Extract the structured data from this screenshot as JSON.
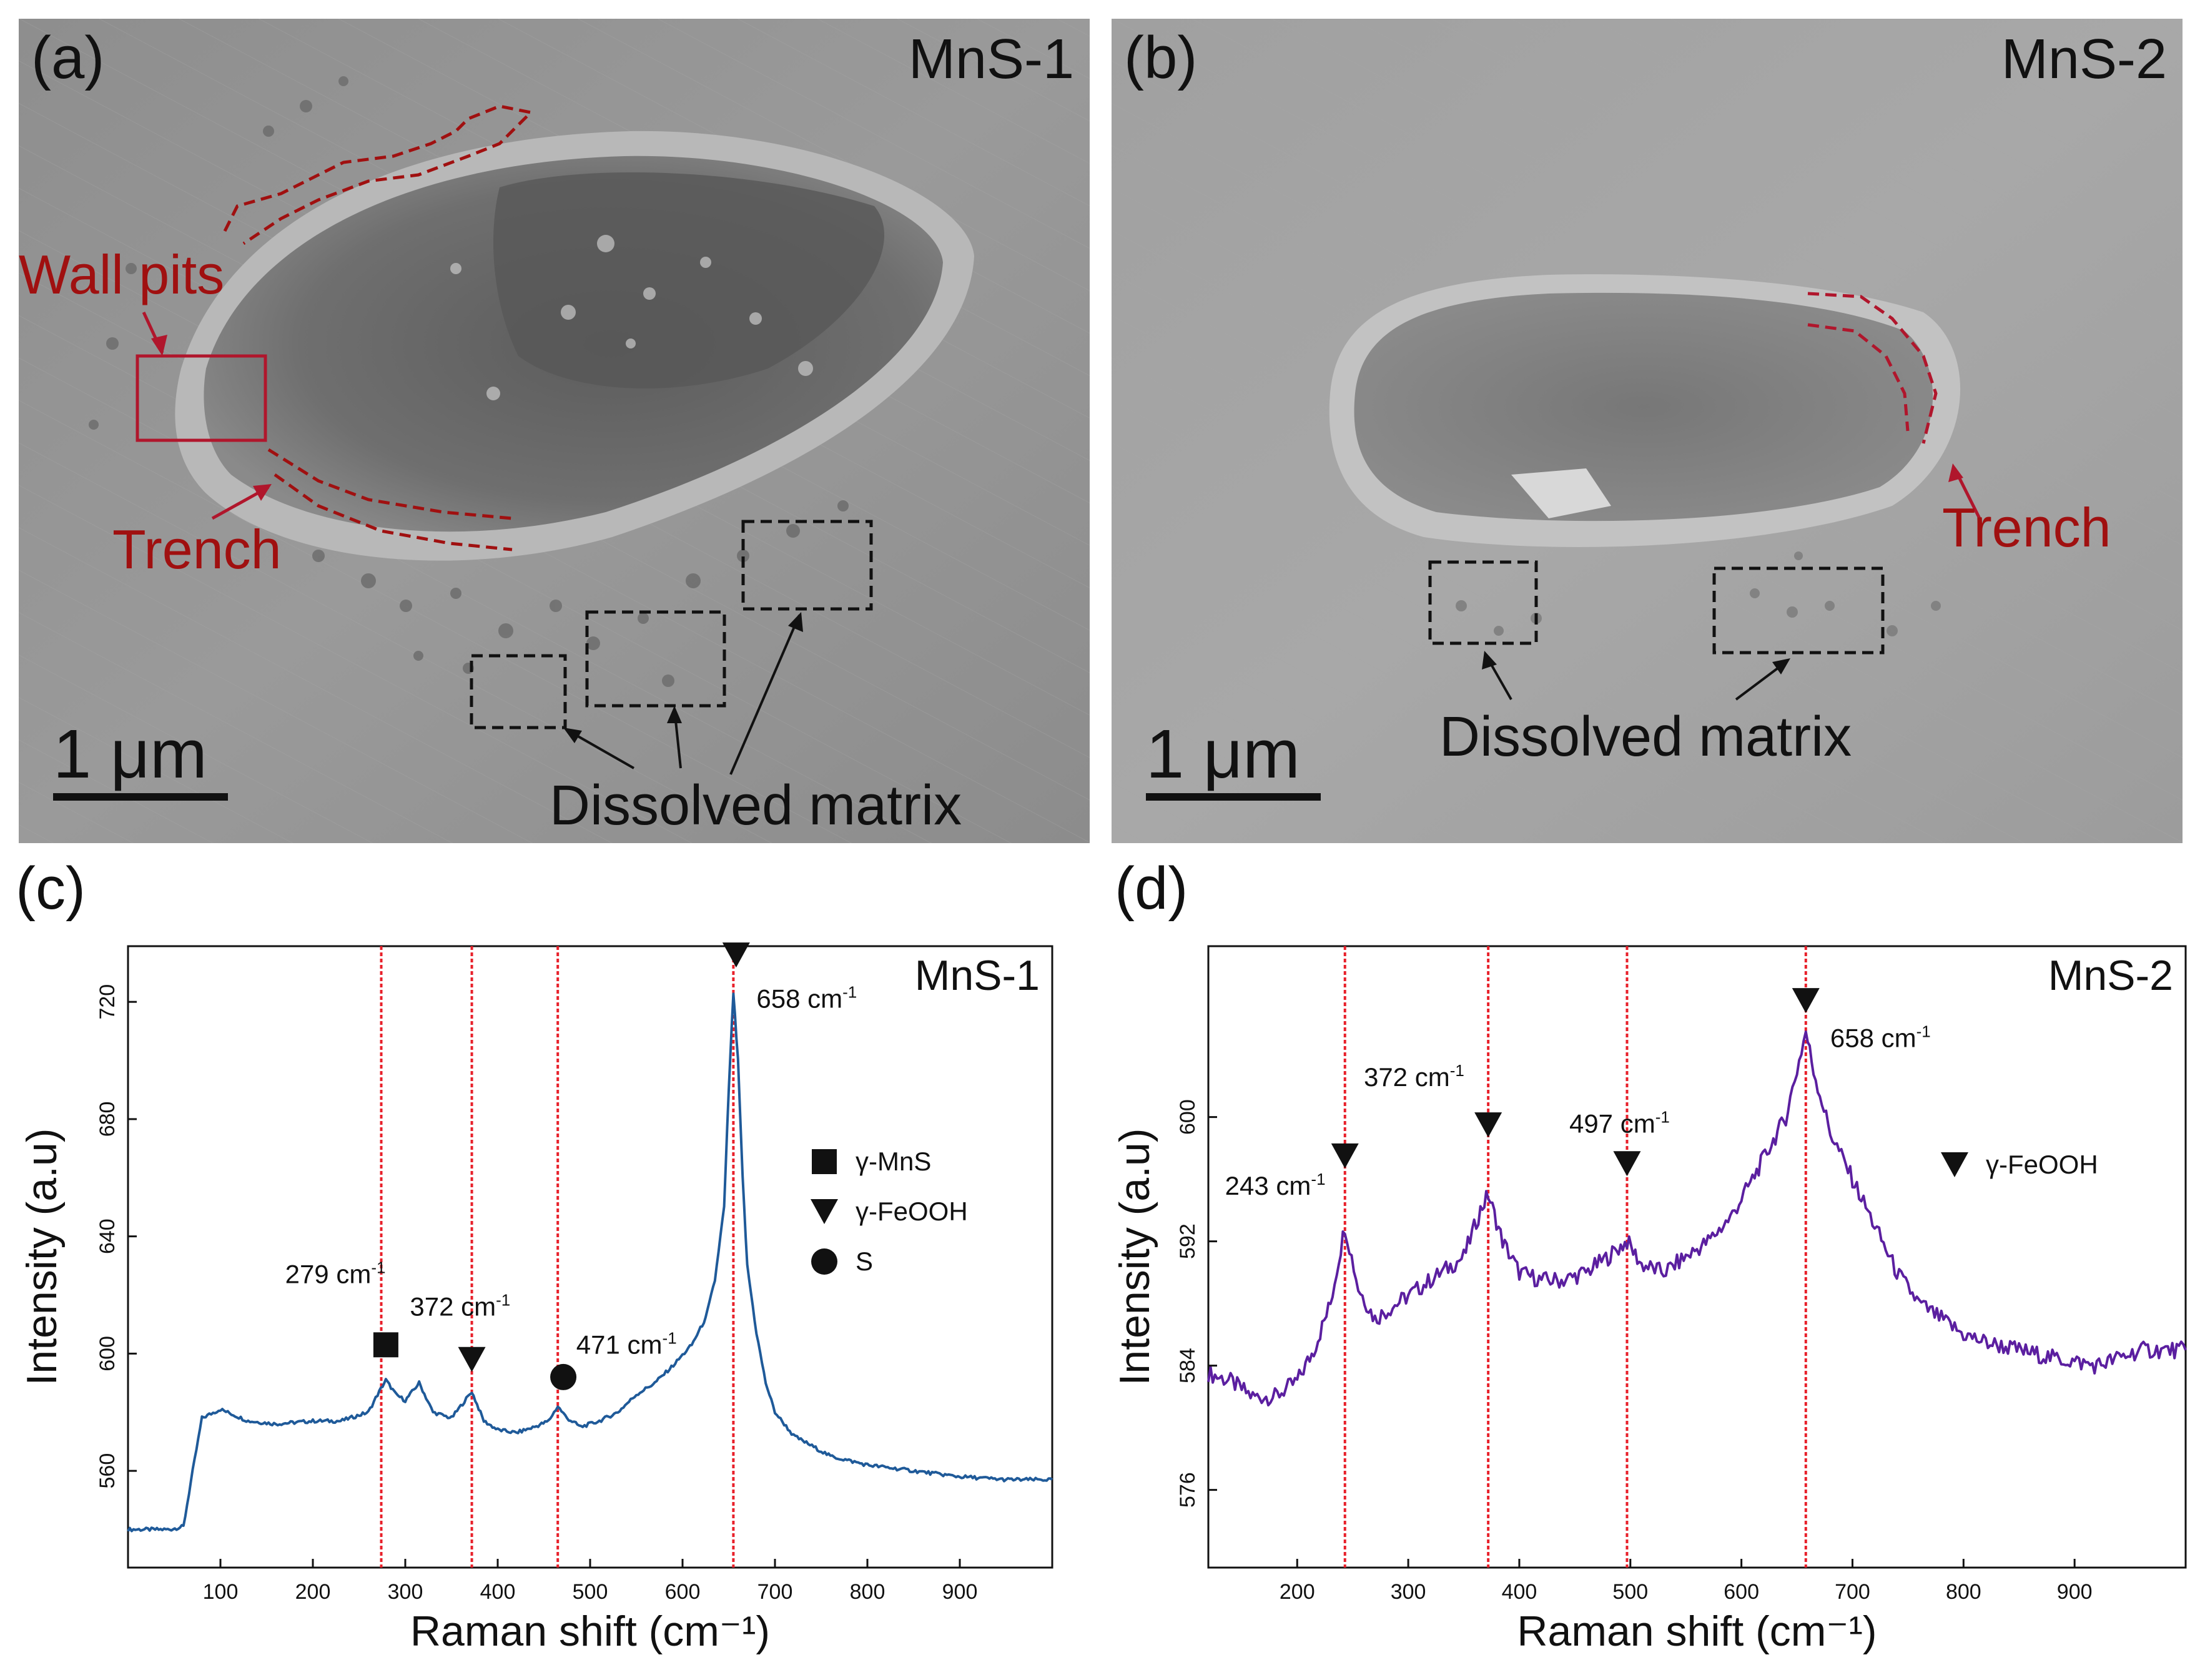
{
  "figure": {
    "panels": [
      {
        "letter": "(a)",
        "sample": "MnS-1",
        "scale_bar": "1 μm",
        "annotations": {
          "wall_pits": "Wall pits",
          "trench": "Trench",
          "dissolved": "Dissolved matrix"
        }
      },
      {
        "letter": "(b)",
        "sample": "MnS-2",
        "scale_bar": "1 μm",
        "annotations": {
          "trench": "Trench",
          "dissolved": "Dissolved matrix"
        }
      }
    ],
    "colors": {
      "annotation_red": "#a01010",
      "series_c": "#1f5a99",
      "series_d": "#5b1fa0",
      "guide_red": "#e8202a"
    }
  },
  "chart_data": [
    {
      "type": "line",
      "panel_label": "(c)",
      "title": "MnS-1",
      "xlabel": "Raman shift (cm⁻¹)",
      "ylabel": "Intensity (a.u)",
      "xlim": [
        0,
        1000
      ],
      "ylim": [
        527,
        739
      ],
      "xticks": [
        100,
        200,
        300,
        400,
        500,
        600,
        700,
        800,
        900
      ],
      "yticks": [
        560,
        600,
        640,
        680,
        720
      ],
      "grid": false,
      "legend_position": "right",
      "legend": [
        {
          "marker": "square",
          "label": "γ-MnS"
        },
        {
          "marker": "triangle-down",
          "label": "γ-FeOOH"
        },
        {
          "marker": "circle",
          "label": "S"
        }
      ],
      "guide_lines_x": [
        274,
        372,
        465,
        655
      ],
      "peaks": [
        {
          "x": 279,
          "label": "279 cm",
          "marker": "square"
        },
        {
          "x": 372,
          "label": "372 cm",
          "marker": "triangle-down"
        },
        {
          "x": 471,
          "label": "471 cm",
          "marker": "circle"
        },
        {
          "x": 658,
          "label": "658 cm",
          "marker": "triangle-down"
        }
      ],
      "series": [
        {
          "x": [
            0,
            45,
            60,
            70,
            80,
            100,
            130,
            160,
            200,
            230,
            260,
            270,
            279,
            290,
            300,
            315,
            330,
            350,
            372,
            385,
            400,
            420,
            440,
            455,
            465,
            475,
            490,
            510,
            530,
            550,
            570,
            590,
            610,
            625,
            635,
            645,
            650,
            655,
            660,
            665,
            670,
            680,
            690,
            700,
            720,
            760,
            800,
            850,
            900,
            950,
            1000
          ],
          "values": [
            540,
            540,
            541,
            560,
            578,
            581,
            577,
            576,
            577,
            577,
            580,
            586,
            591,
            586,
            584,
            590,
            580,
            578,
            587,
            577,
            574,
            573,
            575,
            577,
            582,
            578,
            575,
            577,
            580,
            586,
            590,
            596,
            603,
            612,
            625,
            650,
            690,
            723,
            700,
            660,
            630,
            607,
            590,
            580,
            572,
            565,
            562,
            560,
            558,
            557,
            557
          ]
        }
      ]
    },
    {
      "type": "line",
      "panel_label": "(d)",
      "title": "MnS-2",
      "xlabel": "Raman shift (cm⁻¹)",
      "ylabel": "Intensity (a.u)",
      "xlim": [
        120,
        1000
      ],
      "ylim": [
        571,
        611
      ],
      "xticks": [
        200,
        300,
        400,
        500,
        600,
        700,
        800,
        900
      ],
      "yticks": [
        576,
        584,
        592,
        600
      ],
      "grid": false,
      "legend_position": "right",
      "legend": [
        {
          "marker": "triangle-down",
          "label": "γ-FeOOH"
        }
      ],
      "guide_lines_x": [
        243,
        372,
        497,
        658
      ],
      "peaks": [
        {
          "x": 243,
          "label": "243 cm",
          "marker": "triangle-down"
        },
        {
          "x": 372,
          "label": "372 cm",
          "marker": "triangle-down"
        },
        {
          "x": 497,
          "label": "497 cm",
          "marker": "triangle-down"
        },
        {
          "x": 658,
          "label": "658 cm",
          "marker": "triangle-down"
        }
      ],
      "series": [
        {
          "x": [
            120,
            140,
            160,
            180,
            200,
            215,
            230,
            243,
            255,
            270,
            290,
            310,
            330,
            350,
            365,
            372,
            385,
            400,
            420,
            440,
            460,
            480,
            497,
            510,
            530,
            550,
            570,
            590,
            610,
            625,
            640,
            650,
            658,
            665,
            680,
            700,
            720,
            740,
            760,
            780,
            800,
            820,
            850,
            880,
            920,
            960,
            1000
          ],
          "values": [
            583.5,
            583,
            582,
            582,
            583,
            585,
            588,
            593,
            589,
            587,
            588,
            589,
            590,
            591,
            594,
            595,
            592,
            590,
            589.5,
            589.5,
            590,
            591,
            592,
            590.5,
            590,
            591,
            592,
            593.5,
            596,
            598,
            600,
            603,
            605.5,
            603,
            599,
            596,
            593,
            590,
            588,
            587,
            586,
            585.5,
            585,
            584.5,
            584,
            585,
            585
          ]
        }
      ]
    }
  ]
}
